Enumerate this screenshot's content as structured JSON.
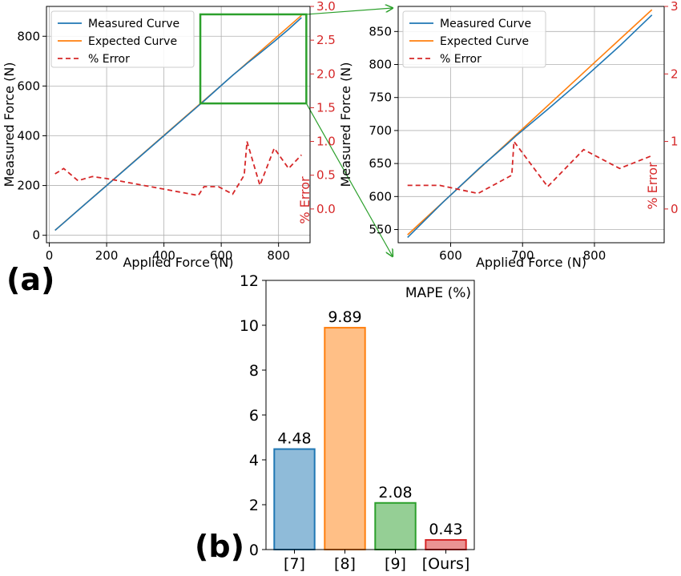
{
  "panel_labels": {
    "a": "(a)",
    "b": "(b)"
  },
  "colors": {
    "measured": "#1f77b4",
    "expected": "#ff7f0e",
    "error": "#d62728",
    "zoom_box": "#2ca02c",
    "bars": [
      "#1f77b4",
      "#ff7f0e",
      "#2ca02c",
      "#d62728"
    ]
  },
  "chart_data": [
    {
      "id": "a-main",
      "type": "line",
      "xlabel": "Applied Force (N)",
      "ylabel": "Measured Force (N)",
      "ylabel_right": "% Error",
      "xlim": [
        -10,
        910
      ],
      "ylim": [
        -30,
        920
      ],
      "ylim_right": [
        -0.5,
        3.0
      ],
      "xticks": [
        0,
        200,
        400,
        600,
        800
      ],
      "yticks": [
        0,
        200,
        400,
        600,
        800
      ],
      "yticks_right": [
        "0.0",
        "0.5",
        "1.0",
        "1.5",
        "2.0",
        "2.5",
        "3.0"
      ],
      "grid": true,
      "legend_position": "upper-left",
      "series": [
        {
          "name": "Measured Curve",
          "axis": "left",
          "style": "solid",
          "x": [
            20,
            50,
            100,
            150,
            200,
            300,
            400,
            520,
            540,
            590,
            640,
            680,
            690,
            735,
            785,
            835,
            880
          ],
          "y": [
            20,
            50,
            100,
            150,
            200,
            300,
            400,
            520,
            540,
            592,
            643,
            681,
            691,
            732,
            779,
            828,
            875
          ]
        },
        {
          "name": "Expected Curve",
          "axis": "left",
          "style": "solid",
          "x": [
            20,
            880
          ],
          "y": [
            20,
            884
          ]
        },
        {
          "name": "% Error",
          "axis": "right",
          "style": "dashed",
          "x": [
            20,
            50,
            100,
            150,
            200,
            520,
            540,
            590,
            640,
            680,
            690,
            735,
            785,
            835,
            880
          ],
          "y": [
            0.52,
            0.6,
            0.42,
            0.48,
            0.45,
            0.2,
            0.33,
            0.33,
            0.22,
            0.5,
            1.0,
            0.35,
            0.9,
            0.6,
            0.8
          ]
        }
      ]
    },
    {
      "id": "a-zoom",
      "type": "line",
      "xlabel": "Applied Force (N)",
      "ylabel": "Measured Force (N)",
      "ylabel_right": "% Error",
      "xlim": [
        527,
        897
      ],
      "ylim": [
        530,
        888
      ],
      "ylim_right": [
        -0.5,
        3.0
      ],
      "xticks": [
        600,
        700,
        800
      ],
      "yticks": [
        550,
        600,
        650,
        700,
        750,
        800,
        850
      ],
      "yticks_right": [
        "0",
        "1",
        "2",
        "3"
      ],
      "grid": true,
      "legend_position": "upper-left",
      "series": [
        {
          "name": "Measured Curve",
          "axis": "left",
          "style": "solid",
          "x": [
            540,
            590,
            640,
            680,
            690,
            735,
            785,
            835,
            880
          ],
          "y": [
            538,
            592,
            643,
            681,
            691,
            732,
            779,
            828,
            875
          ]
        },
        {
          "name": "Expected Curve",
          "axis": "left",
          "style": "solid",
          "x": [
            540,
            880
          ],
          "y": [
            542,
            883
          ]
        },
        {
          "name": "% Error",
          "axis": "right",
          "style": "dashed",
          "x": [
            540,
            585,
            638,
            685,
            688,
            735,
            785,
            835,
            880
          ],
          "y": [
            0.35,
            0.35,
            0.23,
            0.5,
            1.0,
            0.33,
            0.88,
            0.6,
            0.79
          ]
        }
      ]
    },
    {
      "id": "b-bars",
      "type": "bar",
      "categories": [
        "[7]",
        "[8]",
        "[9]",
        "[Ours]"
      ],
      "values": [
        4.48,
        9.89,
        2.08,
        0.43
      ],
      "value_labels": [
        "4.48",
        "9.89",
        "2.08",
        "0.43"
      ],
      "annotation": "MAPE (%)",
      "ylim": [
        0,
        12
      ],
      "yticks": [
        0,
        2,
        4,
        6,
        8,
        10,
        12
      ],
      "grid": false
    }
  ]
}
